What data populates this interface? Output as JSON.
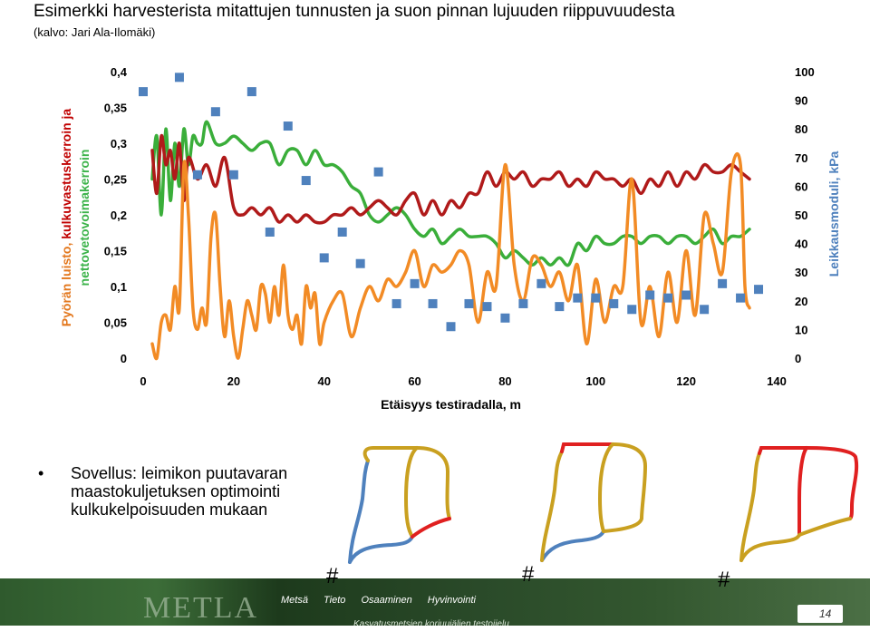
{
  "header": {
    "title": "Esimerkki harvesterista mitattujen tunnusten ja suon pinnan lujuuden riippuvuudesta",
    "subtitle": "(kalvo: Jari Ala-Ilomäki)"
  },
  "chart_data": {
    "type": "line",
    "xlabel": "Etäisyys testiradalla, m",
    "ylabel_left": [
      {
        "text": "Pyörän luisto, ",
        "color": "#e3771c"
      },
      {
        "text": "kulkuvastuskerroin ",
        "color": "#c00000"
      },
      {
        "text": "ja",
        "color": "#c00000"
      }
    ],
    "ylabel_left_line2": {
      "text": "nettovetovoimakerroin",
      "color": "#3cb34a"
    },
    "ylabel_right": "Leikkausmoduli, kPa",
    "ylabel_right_color": "#4f81bd",
    "xlim": [
      0,
      140
    ],
    "ylim_left": [
      0,
      0.4
    ],
    "ylim_right": [
      0,
      100
    ],
    "x_ticks": [
      "0",
      "20",
      "40",
      "60",
      "80",
      "100",
      "120",
      "140"
    ],
    "y_left_ticks": [
      "0",
      "0,05",
      "0,1",
      "0,15",
      "0,2",
      "0,25",
      "0,3",
      "0,35",
      "0,4"
    ],
    "y_right_ticks": [
      "0",
      "10",
      "20",
      "30",
      "40",
      "50",
      "60",
      "70",
      "80",
      "90",
      "100"
    ],
    "grid": false,
    "series": [
      {
        "color": "#3aae3a",
        "axis": "left",
        "x": [
          2,
          3,
          4,
          5,
          6,
          7,
          8,
          9,
          10,
          11,
          12,
          13,
          14,
          16,
          18,
          20,
          22,
          24,
          26,
          28,
          30,
          32,
          34,
          36,
          38,
          40,
          42,
          44,
          46,
          48,
          50,
          52,
          54,
          56,
          58,
          60,
          62,
          64,
          66,
          68,
          70,
          72,
          74,
          76,
          78,
          80,
          82,
          84,
          86,
          88,
          90,
          92,
          94,
          96,
          98,
          100,
          102,
          104,
          106,
          108,
          110,
          112,
          114,
          116,
          118,
          120,
          122,
          124,
          126,
          128,
          130,
          132,
          134
        ],
        "y": [
          0.25,
          0.31,
          0.2,
          0.32,
          0.22,
          0.3,
          0.24,
          0.32,
          0.27,
          0.31,
          0.3,
          0.3,
          0.33,
          0.3,
          0.3,
          0.31,
          0.3,
          0.29,
          0.3,
          0.3,
          0.27,
          0.29,
          0.29,
          0.27,
          0.29,
          0.27,
          0.27,
          0.26,
          0.24,
          0.23,
          0.2,
          0.19,
          0.2,
          0.21,
          0.2,
          0.18,
          0.17,
          0.18,
          0.16,
          0.17,
          0.18,
          0.17,
          0.17,
          0.17,
          0.16,
          0.14,
          0.15,
          0.14,
          0.13,
          0.14,
          0.13,
          0.14,
          0.13,
          0.16,
          0.15,
          0.17,
          0.16,
          0.16,
          0.17,
          0.17,
          0.16,
          0.17,
          0.17,
          0.16,
          0.17,
          0.17,
          0.16,
          0.17,
          0.18,
          0.16,
          0.17,
          0.17,
          0.18
        ]
      },
      {
        "color": "#b01a1a",
        "axis": "left",
        "x": [
          2,
          3,
          4,
          5,
          6,
          7,
          8,
          9,
          10,
          12,
          14,
          16,
          18,
          20,
          22,
          24,
          26,
          28,
          30,
          32,
          34,
          36,
          38,
          40,
          42,
          44,
          46,
          48,
          50,
          52,
          54,
          56,
          58,
          60,
          62,
          64,
          66,
          68,
          70,
          72,
          74,
          76,
          78,
          80,
          82,
          84,
          86,
          88,
          90,
          92,
          94,
          96,
          98,
          100,
          102,
          104,
          106,
          108,
          110,
          112,
          114,
          116,
          118,
          120,
          122,
          124,
          126,
          128,
          130,
          132,
          134
        ],
        "y": [
          0.29,
          0.23,
          0.31,
          0.27,
          0.29,
          0.25,
          0.3,
          0.22,
          0.28,
          0.25,
          0.27,
          0.24,
          0.28,
          0.21,
          0.2,
          0.21,
          0.2,
          0.21,
          0.19,
          0.2,
          0.19,
          0.2,
          0.19,
          0.19,
          0.2,
          0.2,
          0.21,
          0.2,
          0.21,
          0.22,
          0.21,
          0.2,
          0.22,
          0.23,
          0.2,
          0.22,
          0.2,
          0.22,
          0.21,
          0.23,
          0.23,
          0.26,
          0.24,
          0.26,
          0.25,
          0.26,
          0.24,
          0.25,
          0.25,
          0.26,
          0.24,
          0.25,
          0.24,
          0.26,
          0.25,
          0.25,
          0.24,
          0.25,
          0.23,
          0.25,
          0.24,
          0.26,
          0.24,
          0.26,
          0.25,
          0.27,
          0.26,
          0.26,
          0.27,
          0.26,
          0.25
        ]
      },
      {
        "color": "#f28b25",
        "axis": "left",
        "x": [
          2,
          3,
          4,
          5,
          6,
          7,
          8,
          9,
          10,
          11,
          12,
          13,
          14,
          15,
          16,
          17,
          18,
          19,
          20,
          21,
          22,
          23,
          24,
          25,
          26,
          27,
          28,
          29,
          30,
          31,
          32,
          33,
          34,
          35,
          36,
          37,
          38,
          39,
          40,
          42,
          44,
          46,
          48,
          50,
          52,
          54,
          56,
          58,
          60,
          62,
          64,
          66,
          68,
          70,
          72,
          74,
          76,
          78,
          80,
          82,
          84,
          86,
          88,
          90,
          92,
          94,
          96,
          98,
          100,
          102,
          104,
          106,
          108,
          110,
          112,
          114,
          116,
          118,
          120,
          122,
          124,
          126,
          128,
          130,
          132,
          133,
          134
        ],
        "y": [
          0.02,
          0,
          0.05,
          0.06,
          0.04,
          0.1,
          0.07,
          0.27,
          0.2,
          0.07,
          0.04,
          0.07,
          0.05,
          0.17,
          0.2,
          0.1,
          0.03,
          0.08,
          0.03,
          0,
          0.04,
          0.08,
          0.06,
          0.04,
          0.1,
          0.09,
          0.05,
          0.1,
          0.06,
          0.13,
          0.06,
          0.04,
          0.06,
          0.02,
          0.1,
          0.07,
          0.09,
          0.02,
          0.05,
          0.08,
          0.09,
          0.03,
          0.07,
          0.1,
          0.08,
          0.11,
          0.1,
          0.12,
          0.15,
          0.1,
          0.13,
          0.12,
          0.13,
          0.15,
          0.13,
          0.05,
          0.12,
          0.1,
          0.27,
          0.13,
          0.08,
          0.14,
          0.13,
          0.1,
          0.12,
          0.08,
          0.13,
          0.02,
          0.11,
          0.05,
          0.1,
          0.1,
          0.25,
          0.05,
          0.1,
          0.03,
          0.12,
          0.05,
          0.15,
          0.06,
          0.2,
          0.16,
          0.12,
          0.26,
          0.27,
          0.1,
          0.07
        ]
      }
    ],
    "scatter": {
      "color": "#4f81bd",
      "axis": "right",
      "x": [
        0,
        8,
        12,
        16,
        20,
        24,
        28,
        32,
        36,
        40,
        44,
        48,
        52,
        56,
        60,
        64,
        68,
        72,
        76,
        80,
        84,
        88,
        92,
        96,
        100,
        104,
        108,
        112,
        116,
        120,
        124,
        128,
        132,
        136
      ],
      "y": [
        93,
        98,
        64,
        86,
        64,
        93,
        44,
        81,
        62,
        35,
        44,
        33,
        65,
        19,
        26,
        19,
        11,
        19,
        18,
        14,
        19,
        26,
        18,
        21,
        21,
        19,
        17,
        22,
        21,
        22,
        17,
        26,
        21,
        24
      ]
    }
  },
  "bullet": {
    "symbol": "•",
    "text": "Sovellus: leimikon puutavaran maastokuljetuksen optimointi kulkukelpoisuuden mukaan"
  },
  "diagrams": {
    "hash_label": "#",
    "colors": {
      "blue": "#4f81bd",
      "gold": "#c9a020",
      "red": "#e02020"
    }
  },
  "footer": {
    "logo": "METLA",
    "nav": [
      "Metsä",
      "Tieto",
      "Osaaminen",
      "Hyvinvointi"
    ],
    "subtext": "Kasvatusmetsien korjuujälien testoijelu",
    "page": "14"
  }
}
